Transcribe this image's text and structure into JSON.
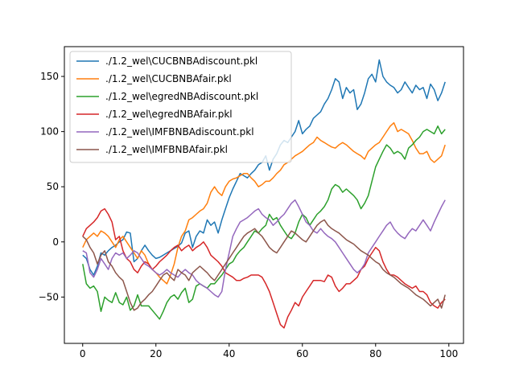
{
  "chart_data": {
    "type": "line",
    "title": "",
    "xlabel": "",
    "ylabel": "",
    "xlim": [
      -5,
      104
    ],
    "ylim": [
      -92,
      177
    ],
    "x_ticks": [
      0,
      20,
      40,
      60,
      80,
      100
    ],
    "y_ticks": [
      -50,
      0,
      50,
      100,
      150
    ],
    "grid": false,
    "legend": {
      "position": "top-left"
    },
    "series": [
      {
        "name": "./1.2_wel\\CUCBNBAdiscount.pkl",
        "color": "#1f77b4",
        "values": [
          -12,
          -15,
          -25,
          -30,
          -22,
          -10,
          -12,
          -8,
          -5,
          -3,
          0,
          2,
          9,
          8,
          -18,
          -15,
          -8,
          -3,
          -8,
          -12,
          -15,
          -14,
          -12,
          -10,
          -8,
          -6,
          -4,
          -1,
          8,
          10,
          -5,
          5,
          10,
          8,
          20,
          15,
          18,
          8,
          20,
          30,
          40,
          48,
          55,
          62,
          60,
          58,
          62,
          65,
          70,
          72,
          78,
          65,
          75,
          80,
          88,
          92,
          90,
          95,
          100,
          110,
          98,
          102,
          105,
          112,
          115,
          118,
          125,
          130,
          138,
          148,
          145,
          130,
          140,
          135,
          138,
          120,
          125,
          135,
          148,
          152,
          145,
          165,
          150,
          145,
          142,
          140,
          135,
          138,
          145,
          140,
          135,
          142,
          138,
          140,
          130,
          143,
          138,
          128,
          135,
          145
        ]
      },
      {
        "name": "./1.2_wel\\CUCBNBAfair.pkl",
        "color": "#ff7f0e",
        "values": [
          -5,
          2,
          5,
          8,
          5,
          10,
          8,
          5,
          0,
          -5,
          2,
          5,
          0,
          -5,
          -10,
          -15,
          -8,
          -12,
          -20,
          -25,
          -28,
          -32,
          -35,
          -38,
          -30,
          -20,
          -5,
          5,
          10,
          20,
          22,
          25,
          28,
          30,
          35,
          45,
          50,
          45,
          42,
          50,
          55,
          57,
          58,
          60,
          62,
          62,
          58,
          55,
          50,
          52,
          55,
          55,
          58,
          62,
          65,
          70,
          72,
          75,
          78,
          80,
          82,
          85,
          88,
          90,
          95,
          92,
          90,
          88,
          86,
          85,
          88,
          90,
          88,
          85,
          82,
          80,
          78,
          75,
          82,
          85,
          88,
          90,
          95,
          100,
          105,
          108,
          100,
          102,
          100,
          98,
          92,
          85,
          80,
          80,
          82,
          75,
          72,
          75,
          78,
          88
        ]
      },
      {
        "name": "./1.2_wel\\egredNBAdiscount.pkl",
        "color": "#2ca02c",
        "values": [
          -20,
          -38,
          -42,
          -40,
          -45,
          -63,
          -50,
          -53,
          -55,
          -46,
          -55,
          -57,
          -50,
          -62,
          -58,
          -48,
          -58,
          -58,
          -58,
          -62,
          -66,
          -70,
          -63,
          -55,
          -50,
          -48,
          -52,
          -46,
          -42,
          -55,
          -52,
          -40,
          -38,
          -40,
          -42,
          -38,
          -38,
          -34,
          -30,
          -25,
          -20,
          -18,
          -12,
          -8,
          -5,
          0,
          5,
          10,
          8,
          12,
          15,
          25,
          20,
          22,
          15,
          10,
          5,
          3,
          8,
          18,
          25,
          22,
          15,
          20,
          25,
          28,
          32,
          38,
          48,
          52,
          50,
          45,
          48,
          45,
          42,
          38,
          30,
          35,
          42,
          55,
          68,
          75,
          82,
          88,
          85,
          80,
          82,
          80,
          75,
          85,
          88,
          92,
          95,
          100,
          102,
          100,
          98,
          105,
          98,
          102
        ]
      },
      {
        "name": "./1.2_wel\\egredNBAfair.pkl",
        "color": "#d62728",
        "values": [
          5,
          12,
          15,
          18,
          22,
          28,
          30,
          25,
          18,
          2,
          5,
          -8,
          -15,
          -18,
          -25,
          -28,
          -22,
          -18,
          -20,
          -25,
          -22,
          -18,
          -15,
          -12,
          -8,
          -5,
          -3,
          -8,
          -5,
          -3,
          -8,
          -5,
          -3,
          0,
          -5,
          -12,
          -15,
          -18,
          -22,
          -28,
          -30,
          -32,
          -35,
          -35,
          -33,
          -32,
          -30,
          -30,
          -30,
          -32,
          -38,
          -45,
          -55,
          -65,
          -75,
          -78,
          -68,
          -62,
          -55,
          -58,
          -50,
          -45,
          -40,
          -35,
          -35,
          -35,
          -36,
          -30,
          -32,
          -40,
          -45,
          -42,
          -38,
          -38,
          -35,
          -32,
          -25,
          -22,
          -15,
          -10,
          -5,
          -8,
          -18,
          -25,
          -30,
          -30,
          -32,
          -35,
          -38,
          -40,
          -42,
          -40,
          -45,
          -45,
          -48,
          -55,
          -58,
          -60,
          -55,
          -52
        ]
      },
      {
        "name": "./1.2_wel\\IMFBNBAdiscount.pkl",
        "color": "#9467bd",
        "values": [
          -8,
          -10,
          -28,
          -32,
          -25,
          -15,
          -20,
          -25,
          -15,
          -10,
          -12,
          -10,
          -15,
          -12,
          -8,
          -10,
          -15,
          -20,
          -22,
          -25,
          -28,
          -30,
          -28,
          -25,
          -28,
          -30,
          -32,
          -28,
          -25,
          -28,
          -30,
          -35,
          -38,
          -40,
          -42,
          -45,
          -48,
          -50,
          -45,
          -25,
          -10,
          5,
          12,
          18,
          20,
          22,
          25,
          28,
          30,
          25,
          22,
          20,
          15,
          18,
          22,
          25,
          30,
          35,
          38,
          32,
          25,
          18,
          15,
          10,
          8,
          12,
          8,
          5,
          3,
          0,
          -5,
          -10,
          -15,
          -20,
          -25,
          -28,
          -25,
          -20,
          -10,
          -5,
          0,
          5,
          10,
          15,
          18,
          12,
          8,
          5,
          3,
          8,
          12,
          10,
          15,
          20,
          15,
          10,
          18,
          25,
          32,
          38
        ]
      },
      {
        "name": "./1.2_wel\\IMFBNBAfair.pkl",
        "color": "#8c564b",
        "values": [
          5,
          2,
          -5,
          -10,
          -20,
          -12,
          -8,
          -18,
          -22,
          -28,
          -32,
          -35,
          -45,
          -55,
          -62,
          -60,
          -55,
          -52,
          -48,
          -45,
          -40,
          -35,
          -30,
          -28,
          -32,
          -35,
          -25,
          -28,
          -30,
          -35,
          -28,
          -25,
          -22,
          -25,
          -28,
          -32,
          -35,
          -30,
          -25,
          -20,
          -15,
          -10,
          -5,
          0,
          5,
          8,
          10,
          12,
          8,
          5,
          0,
          -5,
          -8,
          -10,
          -5,
          0,
          5,
          10,
          8,
          5,
          2,
          0,
          5,
          10,
          15,
          18,
          20,
          15,
          12,
          10,
          8,
          5,
          2,
          0,
          -2,
          -5,
          -8,
          -10,
          -12,
          -15,
          -18,
          -20,
          -25,
          -28,
          -30,
          -32,
          -35,
          -38,
          -40,
          -42,
          -45,
          -48,
          -50,
          -52,
          -55,
          -58,
          -55,
          -52,
          -60,
          -48
        ]
      }
    ]
  }
}
